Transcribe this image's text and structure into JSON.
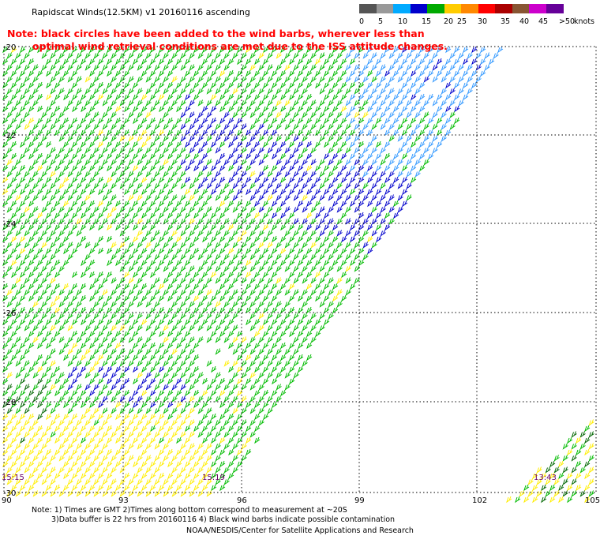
{
  "title": "Rapidscat Winds(12.5KM) v1 20160116 ascending",
  "note": {
    "line1": "Note: black circles have been added to the wind barbs, wherever less than",
    "line2": "optimal wind retrieval conditions are met due to the ISS attitude changes."
  },
  "colorbar": {
    "unit": "knots",
    "ticks": [
      "0",
      "5",
      "10",
      "15",
      "20",
      "25",
      "30",
      "35",
      "40",
      "45",
      ">50"
    ],
    "colors": [
      "#555555",
      "#999999",
      "#00aaff",
      "#0000cc",
      "#00aa00",
      "#ffcc00",
      "#ff8800",
      "#ff0000",
      "#aa0000",
      "#885533",
      "#cc00cc",
      "#660099"
    ]
  },
  "map": {
    "lat_labels": [
      "-20",
      "-22",
      "-24",
      "-26",
      "-28",
      "-30"
    ],
    "lon_labels": [
      "90",
      "93",
      "96",
      "99",
      "102",
      "105"
    ],
    "time_labels": [
      "15:15",
      "15:19",
      "13:43"
    ],
    "colors": {
      "green": "#00bb00",
      "dark_green": "#006600",
      "blue": "#0000cc",
      "light_blue": "#3399ff",
      "yellow": "#ffee00"
    }
  },
  "footer": {
    "line1": "Note: 1) Times are GMT 2)Times along bottom correspond to measurement at ~20S",
    "line2": "3)Data buffer is 22 hrs from 20160116 4) Black wind barbs indicate possible contamination",
    "line3": "NOAA/NESDIS/Center for Satellite Applications and Research"
  }
}
